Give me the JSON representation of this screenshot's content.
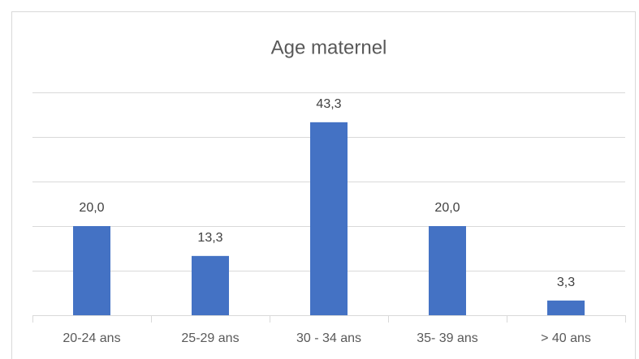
{
  "chart_data": {
    "type": "bar",
    "title": "Age maternel",
    "categories": [
      "20-24 ans",
      "25-29 ans",
      "30 - 34 ans",
      "35- 39 ans",
      "> 40 ans"
    ],
    "values": [
      20.0,
      13.3,
      43.3,
      20.0,
      3.3
    ],
    "value_labels": [
      "20,0",
      "13,3",
      "43,3",
      "20,0",
      "3,3"
    ],
    "color": "#4472c4",
    "ylim": [
      0,
      50
    ],
    "yticks": [
      0,
      10,
      20,
      30,
      40,
      50
    ],
    "grid": true
  }
}
